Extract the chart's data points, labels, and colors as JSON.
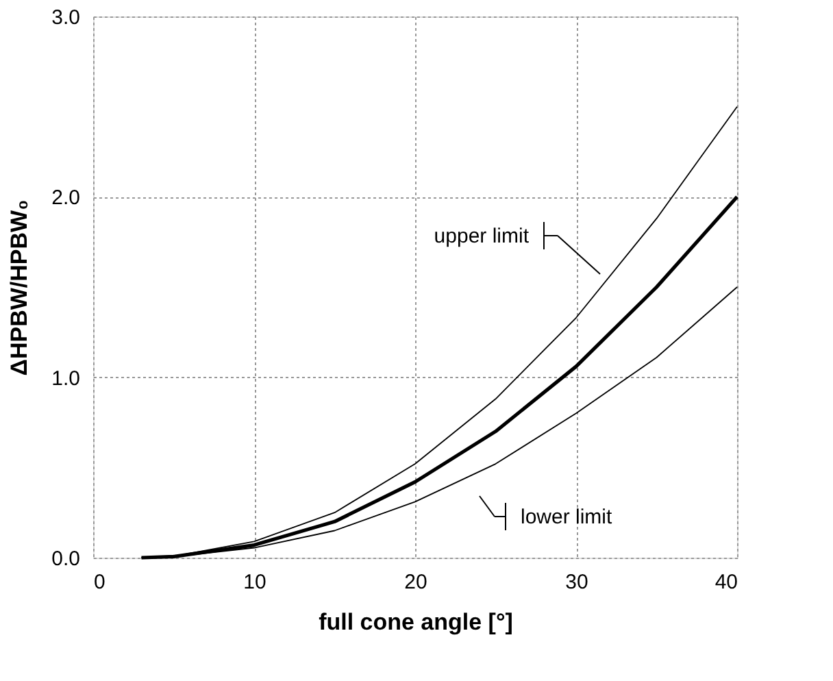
{
  "chart_data": {
    "type": "line",
    "xlabel": "full cone angle [°]",
    "ylabel": "ΔHPBW/HPBW₀",
    "x": [
      3,
      5,
      10,
      15,
      20,
      25,
      30,
      35,
      40
    ],
    "series": [
      {
        "color": "#000000",
        "values": [
          0,
          0.006,
          0.07,
          0.2,
          0.42,
          0.7,
          1.06,
          1.5,
          2.0
        ]
      },
      {
        "color": "#000000",
        "values": [
          0,
          0.008,
          0.09,
          0.25,
          0.52,
          0.88,
          1.33,
          1.88,
          2.5
        ]
      },
      {
        "color": "#000000",
        "values": [
          0,
          0.005,
          0.055,
          0.15,
          0.31,
          0.52,
          0.8,
          1.11,
          1.5
        ]
      }
    ],
    "xlim": [
      0,
      40
    ],
    "xticks": [
      0,
      10,
      20,
      30,
      40
    ],
    "ylim": [
      0,
      3
    ],
    "yticks": [
      {
        "value": 0,
        "label": "0.0"
      },
      {
        "value": 1,
        "label": "1.0"
      },
      {
        "value": 2,
        "label": "2.0"
      },
      {
        "value": 3,
        "label": "3.0"
      }
    ],
    "grid": true,
    "marker": "none",
    "line_style": "solid",
    "annotations": [
      "upper limit",
      "lower limit"
    ]
  }
}
